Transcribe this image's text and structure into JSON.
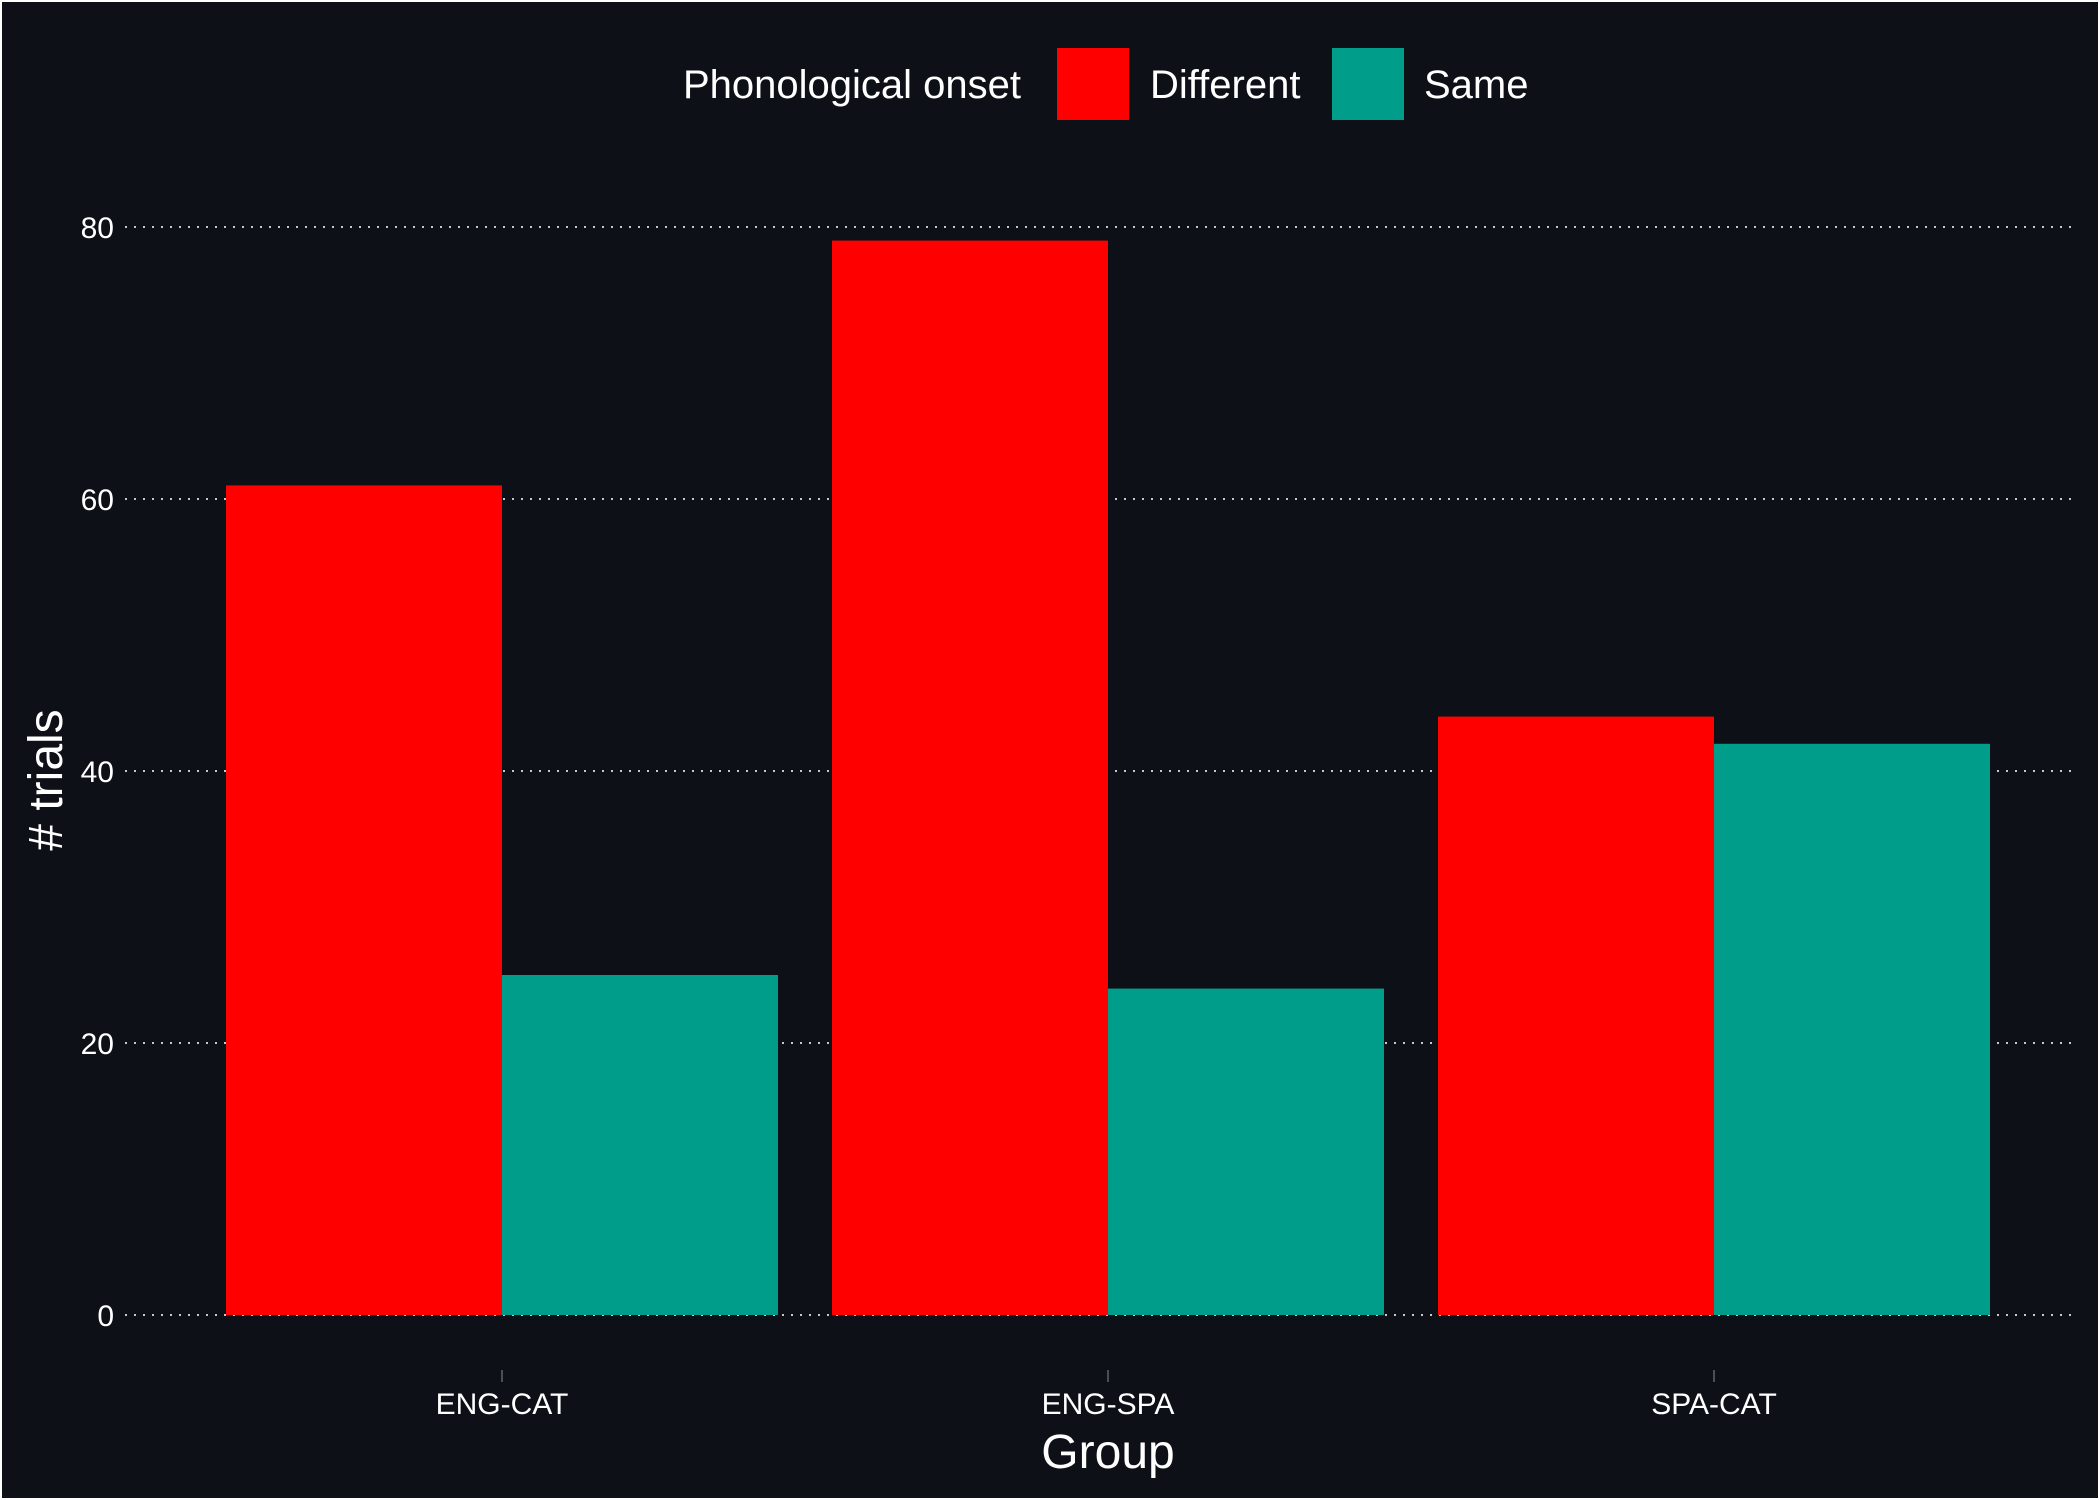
{
  "chart_data": {
    "type": "bar",
    "title": "",
    "xlabel": "Group",
    "ylabel": "# trials",
    "categories": [
      "ENG-CAT",
      "ENG-SPA",
      "SPA-CAT"
    ],
    "series": [
      {
        "name": "Different",
        "color": "#ff0000",
        "values": [
          61,
          79,
          44
        ]
      },
      {
        "name": "Same",
        "color": "#009e8a",
        "values": [
          25,
          24,
          42
        ]
      }
    ],
    "ylim": [
      0,
      85
    ],
    "yticks": [
      0,
      20,
      40,
      60,
      80
    ],
    "grid": "horizontal dotted",
    "legend": {
      "title": "Phonological onset",
      "position": "top"
    },
    "background": "#0d1117"
  }
}
